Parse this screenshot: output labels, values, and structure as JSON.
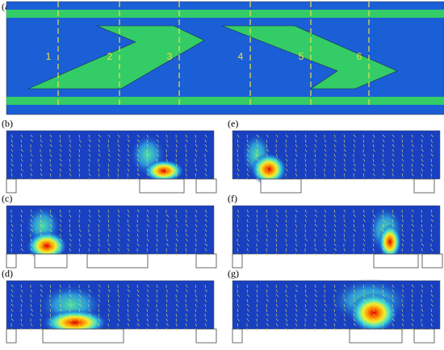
{
  "figure": {
    "panel_a": {
      "label": "(a)",
      "sections": [
        "1",
        "2",
        "3",
        "4",
        "5",
        "6"
      ]
    },
    "panels": [
      {
        "label": "(b)"
      },
      {
        "label": "(e)"
      },
      {
        "label": "(c)"
      },
      {
        "label": "(f)"
      },
      {
        "label": "(d)"
      },
      {
        "label": "(g)"
      }
    ]
  }
}
